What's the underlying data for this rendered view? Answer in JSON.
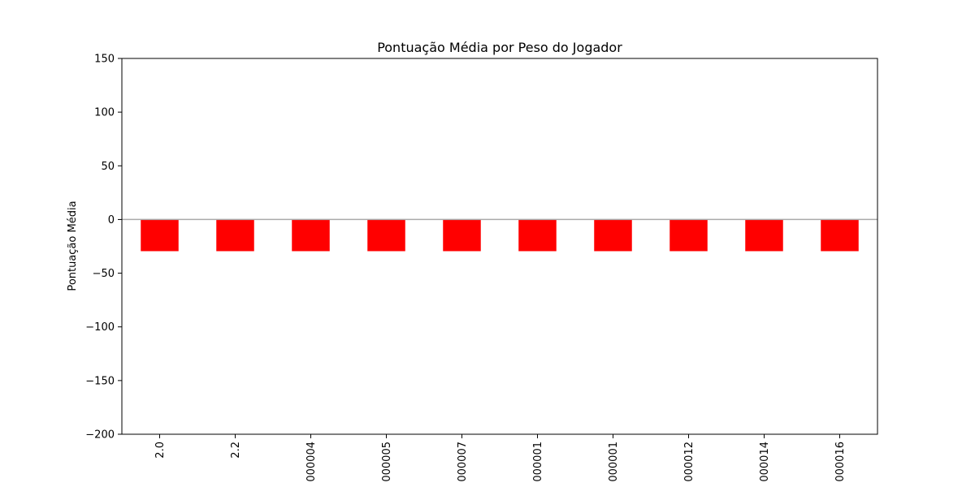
{
  "chart_data": {
    "type": "bar",
    "title": "Pontuação Média por Peso do Jogador",
    "xlabel": "",
    "ylabel": "Pontuação Média",
    "ylim": [
      -200,
      150
    ],
    "yticks": [
      150,
      100,
      50,
      0,
      -50,
      -100,
      -150,
      -200
    ],
    "ytick_labels": [
      "150",
      "100",
      "50",
      "0",
      "−50",
      "−100",
      "−150",
      "−200"
    ],
    "categories": [
      "2.0",
      "2.2",
      "000004",
      "000005",
      "000007",
      "000001",
      "000001",
      "000012",
      "000014",
      "000016"
    ],
    "values": [
      -29.5,
      -29.5,
      -29.5,
      -29.5,
      -29.5,
      -29.5,
      -29.5,
      -29.5,
      -29.5,
      -29.5
    ],
    "bar_color": "#ff0000",
    "zero_line_color": "#aaaaaa",
    "grid": false,
    "legend": "none"
  }
}
